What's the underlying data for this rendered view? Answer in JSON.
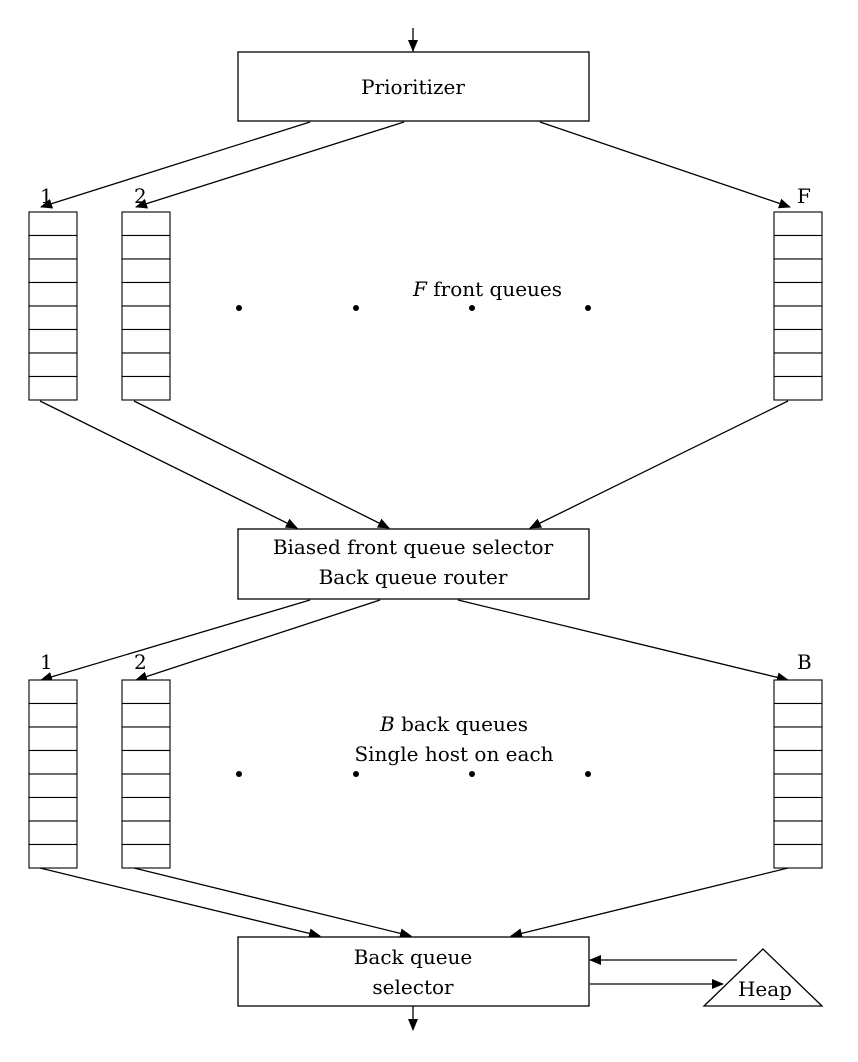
{
  "prioritizer": {
    "label": "Prioritizer"
  },
  "front_queues": {
    "labels": [
      "1",
      "2",
      "F"
    ],
    "caption_var": "F",
    "caption_rest": " front queues"
  },
  "router": {
    "line1": "Biased front queue selector",
    "line2": "Back queue router"
  },
  "back_queues": {
    "labels": [
      "1",
      "2",
      "B"
    ],
    "caption_var": "B",
    "caption_rest": " back queues",
    "caption_line2": "Single host on each"
  },
  "selector": {
    "line1": "Back queue",
    "line2": "selector"
  },
  "heap": {
    "label": "Heap"
  }
}
